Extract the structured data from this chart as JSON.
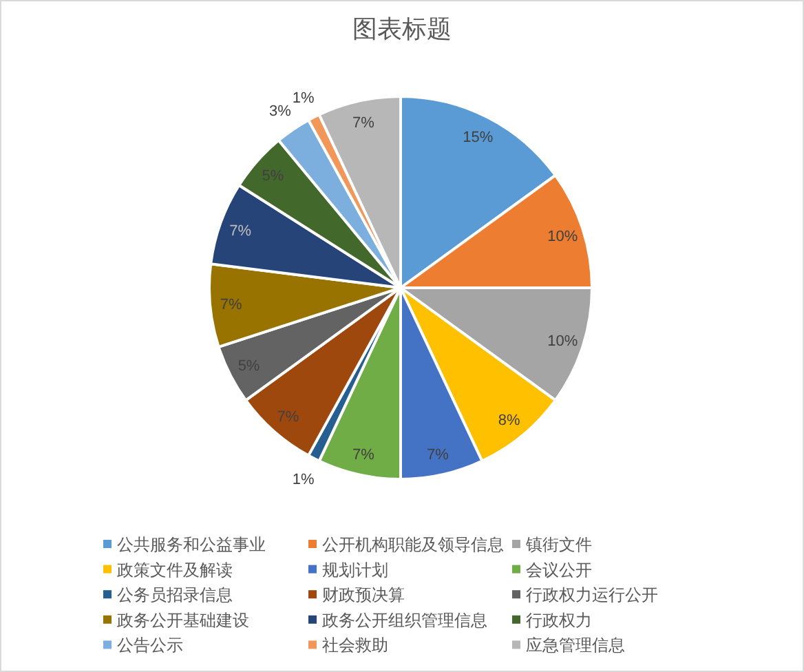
{
  "chart_data": {
    "type": "pie",
    "title": "图表标题",
    "categories": [
      "公共服务和公益事业",
      "公开机构职能及领导信息",
      "镇街文件",
      "政策文件及解读",
      "规划计划",
      "会议公开",
      "公务员招录信息",
      "财政预决算",
      "行政权力运行公开",
      "政务公开基础建设",
      "政务公开组织管理信息",
      "行政权力",
      "公告公示",
      "社会救助",
      "应急管理信息"
    ],
    "values": [
      15,
      10,
      10,
      8,
      7,
      7,
      1,
      7,
      5,
      7,
      7,
      5,
      3,
      1,
      7
    ],
    "colors": [
      "#5b9bd5",
      "#ed7d31",
      "#a5a5a5",
      "#ffc000",
      "#4472c4",
      "#70ad47",
      "#255e91",
      "#9e480e",
      "#636363",
      "#997300",
      "#264478",
      "#43682b",
      "#7cafdd",
      "#f1975a",
      "#b7b7b7"
    ],
    "value_labels": [
      "15%",
      "10%",
      "10%",
      "8%",
      "7%",
      "7%",
      "1%",
      "7%",
      "5%",
      "7%",
      "7%",
      "5%",
      "3%",
      "1%",
      "7%"
    ],
    "legend": "bottom"
  }
}
